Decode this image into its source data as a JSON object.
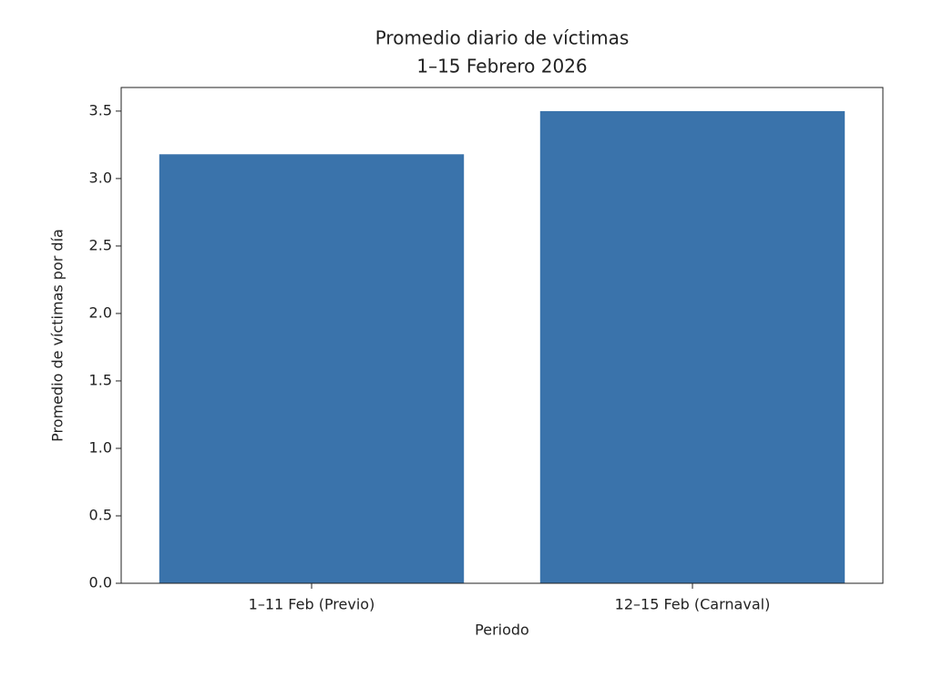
{
  "chart_data": {
    "type": "bar",
    "title": "Promedio diario de víctimas",
    "subtitle": "1–15 Febrero 2026",
    "x_label": "Periodo",
    "y_label": "Promedio de víctimas por día",
    "categories": [
      "1–11 Feb (Previo)",
      "12–15 Feb (Carnaval)"
    ],
    "values": [
      3.18,
      3.5
    ],
    "color": "#3a73ab",
    "ylim": [
      0,
      3.675
    ],
    "yticks": [
      {
        "value": 0,
        "label": "0.0"
      },
      0.5,
      {
        "value": 1,
        "label": "1.0"
      },
      1.5,
      {
        "value": 2,
        "label": "2.0"
      },
      2.5,
      {
        "value": 3,
        "label": "3.0"
      },
      3.5
    ],
    "grid": false
  }
}
